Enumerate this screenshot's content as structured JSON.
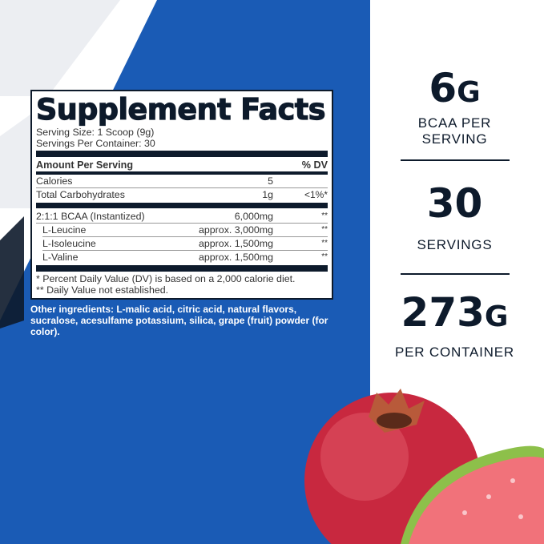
{
  "colors": {
    "brand_blue": "#1a5bb5",
    "navy": "#0d1a2b"
  },
  "label": {
    "title": "Supplement Facts",
    "serving_size": "Serving Size: 1 Scoop (9g)",
    "servings_per_container": "Servings Per Container: 30",
    "header": {
      "amount": "Amount Per Serving",
      "dv": "% DV"
    },
    "rows": [
      {
        "name": "Calories",
        "amount": "5",
        "dv": ""
      },
      {
        "name": "Total Carbohydrates",
        "amount": "1g",
        "dv": "<1%*"
      },
      {
        "name": "2:1:1 BCAA (Instantized)",
        "amount": "6,000mg",
        "dv": "**"
      },
      {
        "name": "L-Leucine",
        "amount": "approx. 3,000mg",
        "dv": "**"
      },
      {
        "name": "L-Isoleucine",
        "amount": "approx. 1,500mg",
        "dv": "**"
      },
      {
        "name": "L-Valine",
        "amount": "approx. 1,500mg",
        "dv": "**"
      }
    ],
    "footnote1": "* Percent Daily Value (DV) is based on a 2,000 calorie diet.",
    "footnote2": "** Daily Value not established."
  },
  "other_ingredients": "Other ingredients: L-malic acid, citric acid, natural flavors, sucralose, acesulfame potassium, silica, grape (fruit) powder (for color).",
  "stats": [
    {
      "value": "6",
      "unit": "G",
      "caption": "BCAA PER SERVING"
    },
    {
      "value": "30",
      "unit": "",
      "caption": "SERVINGS"
    },
    {
      "value": "273",
      "unit": "G",
      "caption": "PER CONTAINER"
    }
  ],
  "images": [
    "pomegranate",
    "guava"
  ]
}
